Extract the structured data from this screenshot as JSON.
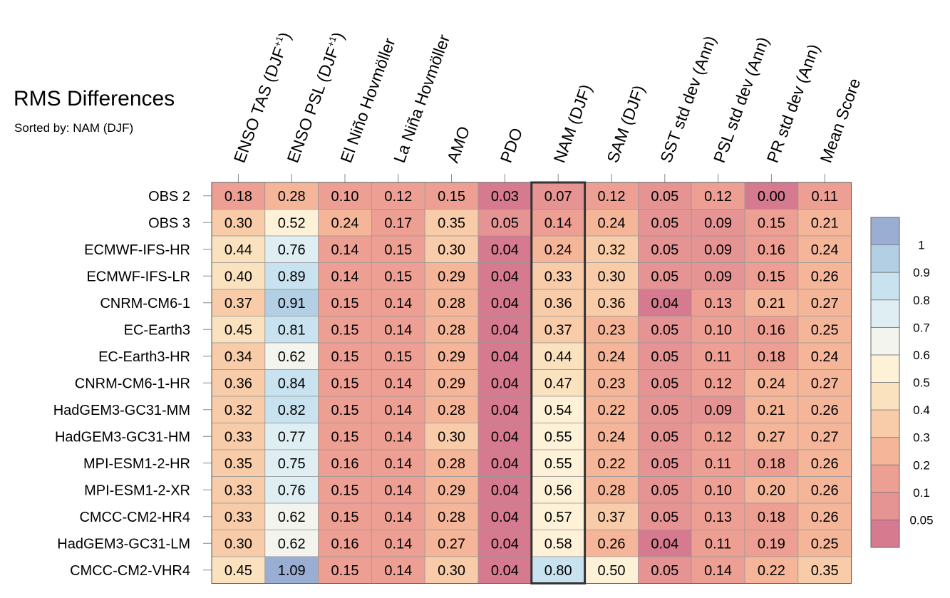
{
  "title": "RMS Differences",
  "subtitle": "Sorted by: NAM (DJF)",
  "chart_data": {
    "type": "heatmap",
    "title": "RMS Differences",
    "subtitle": "Sorted by: NAM (DJF)",
    "columns": [
      {
        "base": "ENSO TAS (DJF",
        "sup": "+1",
        "tail": ")"
      },
      {
        "base": "ENSO PSL (DJF",
        "sup": "+1",
        "tail": ")"
      },
      {
        "base": "El Niño Hovmöller"
      },
      {
        "base": "La Niña Hovmöller"
      },
      {
        "base": "AMO"
      },
      {
        "base": "PDO"
      },
      {
        "base": "NAM (DJF)"
      },
      {
        "base": "SAM (DJF)"
      },
      {
        "base": "SST std dev (Ann)"
      },
      {
        "base": "PSL std dev (Ann)"
      },
      {
        "base": "PR std dev (Ann)"
      },
      {
        "base": "Mean Score"
      }
    ],
    "rows": [
      "OBS 2",
      "OBS 3",
      "ECMWF-IFS-HR",
      "ECMWF-IFS-LR",
      "CNRM-CM6-1",
      "EC-Earth3",
      "EC-Earth3-HR",
      "CNRM-CM6-1-HR",
      "HadGEM3-GC31-MM",
      "HadGEM3-GC31-HM",
      "MPI-ESM1-2-HR",
      "MPI-ESM1-2-XR",
      "CMCC-CM2-HR4",
      "HadGEM3-GC31-LM",
      "CMCC-CM2-VHR4"
    ],
    "values": [
      [
        "0.18",
        "0.28",
        "0.10",
        "0.12",
        "0.15",
        "0.03",
        "0.07",
        "0.12",
        "0.05",
        "0.12",
        "0.00",
        "0.11"
      ],
      [
        "0.30",
        "0.52",
        "0.24",
        "0.17",
        "0.35",
        "0.05",
        "0.14",
        "0.24",
        "0.05",
        "0.09",
        "0.15",
        "0.21"
      ],
      [
        "0.44",
        "0.76",
        "0.14",
        "0.15",
        "0.30",
        "0.04",
        "0.24",
        "0.32",
        "0.05",
        "0.09",
        "0.16",
        "0.24"
      ],
      [
        "0.40",
        "0.89",
        "0.14",
        "0.15",
        "0.29",
        "0.04",
        "0.33",
        "0.30",
        "0.05",
        "0.09",
        "0.15",
        "0.26"
      ],
      [
        "0.37",
        "0.91",
        "0.15",
        "0.14",
        "0.28",
        "0.04",
        "0.36",
        "0.36",
        "0.04",
        "0.13",
        "0.21",
        "0.27"
      ],
      [
        "0.45",
        "0.81",
        "0.15",
        "0.14",
        "0.28",
        "0.04",
        "0.37",
        "0.23",
        "0.05",
        "0.10",
        "0.16",
        "0.25"
      ],
      [
        "0.34",
        "0.62",
        "0.15",
        "0.15",
        "0.29",
        "0.04",
        "0.44",
        "0.24",
        "0.05",
        "0.11",
        "0.18",
        "0.24"
      ],
      [
        "0.36",
        "0.84",
        "0.15",
        "0.14",
        "0.29",
        "0.04",
        "0.47",
        "0.23",
        "0.05",
        "0.12",
        "0.24",
        "0.27"
      ],
      [
        "0.32",
        "0.82",
        "0.15",
        "0.14",
        "0.28",
        "0.04",
        "0.54",
        "0.22",
        "0.05",
        "0.09",
        "0.21",
        "0.26"
      ],
      [
        "0.33",
        "0.77",
        "0.15",
        "0.14",
        "0.30",
        "0.04",
        "0.55",
        "0.24",
        "0.05",
        "0.12",
        "0.27",
        "0.27"
      ],
      [
        "0.35",
        "0.75",
        "0.16",
        "0.14",
        "0.28",
        "0.04",
        "0.55",
        "0.22",
        "0.05",
        "0.11",
        "0.18",
        "0.26"
      ],
      [
        "0.33",
        "0.76",
        "0.15",
        "0.14",
        "0.29",
        "0.04",
        "0.56",
        "0.28",
        "0.05",
        "0.10",
        "0.20",
        "0.26"
      ],
      [
        "0.33",
        "0.62",
        "0.15",
        "0.14",
        "0.28",
        "0.04",
        "0.57",
        "0.37",
        "0.05",
        "0.13",
        "0.18",
        "0.26"
      ],
      [
        "0.30",
        "0.62",
        "0.16",
        "0.14",
        "0.27",
        "0.04",
        "0.58",
        "0.26",
        "0.04",
        "0.11",
        "0.19",
        "0.25"
      ],
      [
        "0.45",
        "1.09",
        "0.15",
        "0.14",
        "0.30",
        "0.04",
        "0.80",
        "0.50",
        "0.05",
        "0.14",
        "0.22",
        "0.35"
      ]
    ],
    "highlighted_column": "NAM (DJF)",
    "colorbar": {
      "bins": [
        {
          "color": "#d57a8f"
        },
        {
          "color": "#e59393",
          "label": "0.05"
        },
        {
          "color": "#ee9f93",
          "label": "0.1"
        },
        {
          "color": "#f4b599",
          "label": "0.2"
        },
        {
          "color": "#f8cca8",
          "label": "0.3"
        },
        {
          "color": "#fbe2be",
          "label": "0.4"
        },
        {
          "color": "#fdf2d8",
          "label": "0.5"
        },
        {
          "color": "#f3f4ed",
          "label": "0.6"
        },
        {
          "color": "#deeef3",
          "label": "0.7"
        },
        {
          "color": "#c8e3ef",
          "label": "0.8"
        },
        {
          "color": "#b2cfe4",
          "label": "0.9"
        },
        {
          "color": "#9aaed4",
          "label": "1"
        }
      ],
      "thresholds": [
        0.05,
        0.1,
        0.2,
        0.3,
        0.4,
        0.5,
        0.6,
        0.7,
        0.8,
        0.9,
        1
      ]
    }
  }
}
